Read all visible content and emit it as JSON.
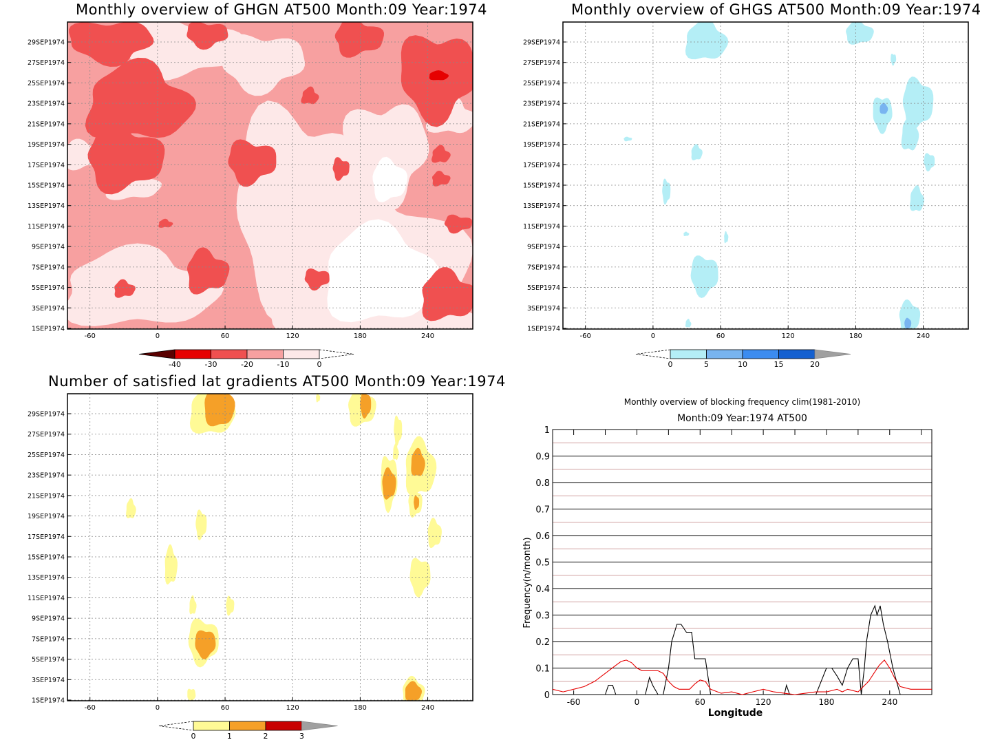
{
  "chart_data": [
    {
      "type": "heatmap",
      "title": "Monthly overview of GHGN AT500 Month:09 Year:1974",
      "x_ticks": [
        -60,
        0,
        60,
        120,
        180,
        240
      ],
      "y_ticks": [
        "1SEP1974",
        "3SEP1974",
        "5SEP1974",
        "7SEP1974",
        "9SEP1974",
        "11SEP1974",
        "13SEP1974",
        "15SEP1974",
        "17SEP1974",
        "19SEP1974",
        "21SEP1974",
        "23SEP1974",
        "25SEP1974",
        "27SEP1974",
        "29SEP1974"
      ],
      "xlim": [
        -80,
        280
      ],
      "colorbar": {
        "ticks": [
          "-40",
          "-30",
          "-20",
          "-10",
          "0"
        ],
        "colors": [
          "#5a0000",
          "#e60000",
          "#f05050",
          "#f7a0a0",
          "#fde8e8"
        ]
      },
      "grid": true
    },
    {
      "type": "heatmap",
      "title": "Monthly overview of GHGS AT500 Month:09 Year:1974",
      "x_ticks": [
        -60,
        0,
        60,
        120,
        180,
        240
      ],
      "y_ticks": [
        "1SEP1974",
        "3SEP1974",
        "5SEP1974",
        "7SEP1974",
        "9SEP1974",
        "11SEP1974",
        "13SEP1974",
        "15SEP1974",
        "17SEP1974",
        "19SEP1974",
        "21SEP1974",
        "23SEP1974",
        "25SEP1974",
        "27SEP1974",
        "29SEP1974"
      ],
      "xlim": [
        -80,
        280
      ],
      "colorbar": {
        "ticks": [
          "0",
          "5",
          "10",
          "15",
          "20"
        ],
        "colors": [
          "#b4eef6",
          "#78b4f0",
          "#3c8cf0",
          "#1460d0",
          "#a0a0a0"
        ]
      },
      "grid": true
    },
    {
      "type": "heatmap",
      "title": "Number of satisfied lat gradients AT500 Month:09 Year:1974",
      "x_ticks": [
        -60,
        0,
        60,
        120,
        180,
        240
      ],
      "y_ticks": [
        "1SEP1974",
        "3SEP1974",
        "5SEP1974",
        "7SEP1974",
        "9SEP1974",
        "11SEP1974",
        "13SEP1974",
        "15SEP1974",
        "17SEP1974",
        "19SEP1974",
        "21SEP1974",
        "23SEP1974",
        "25SEP1974",
        "27SEP1974",
        "29SEP1974"
      ],
      "xlim": [
        -80,
        280
      ],
      "colorbar": {
        "ticks": [
          "0",
          "1",
          "2",
          "3"
        ],
        "colors": [
          "#fffa96",
          "#f5a028",
          "#c80000",
          "#a0a0a0"
        ]
      },
      "grid": true
    },
    {
      "type": "line",
      "title": "Monthly overview of blocking frequency clim(1981-2010)",
      "subtitle": "Month:09 Year:1974  AT500",
      "xlabel": "Longitude",
      "ylabel": "Frequency(n/month)",
      "x_ticks": [
        -60,
        0,
        60,
        120,
        180,
        240
      ],
      "y_ticks": [
        "0",
        "0.1",
        "0.2",
        "0.3",
        "0.4",
        "0.5",
        "0.6",
        "0.7",
        "0.8",
        "0.9",
        "1"
      ],
      "xlim": [
        -80,
        280
      ],
      "ylim": [
        0,
        1
      ],
      "series": [
        {
          "color": "#000000",
          "x": [
            -80,
            -30,
            -27,
            -23,
            -20,
            0,
            8,
            12,
            15,
            20,
            25,
            30,
            33,
            38,
            42,
            47,
            52,
            55,
            65,
            70,
            80,
            120,
            140,
            142,
            145,
            170,
            180,
            185,
            190,
            195,
            200,
            205,
            210,
            213,
            216,
            218,
            222,
            226,
            228,
            231,
            234,
            238,
            243,
            250,
            280
          ],
          "values": [
            0,
            0,
            0.035,
            0.035,
            0,
            0,
            0,
            0.065,
            0.035,
            0,
            0,
            0.1,
            0.2,
            0.265,
            0.265,
            0.235,
            0.235,
            0.135,
            0.135,
            0,
            0,
            0,
            0,
            0.035,
            0,
            0,
            0.1,
            0.1,
            0.07,
            0.035,
            0.1,
            0.135,
            0.135,
            0,
            0.1,
            0.2,
            0.3,
            0.335,
            0.3,
            0.335,
            0.265,
            0.2,
            0.1,
            0,
            0
          ]
        },
        {
          "color": "#e60000",
          "x": [
            -80,
            -70,
            -60,
            -50,
            -40,
            -30,
            -20,
            -15,
            -10,
            -5,
            0,
            5,
            10,
            15,
            20,
            25,
            30,
            35,
            40,
            50,
            55,
            60,
            65,
            70,
            80,
            90,
            100,
            110,
            120,
            130,
            140,
            150,
            160,
            170,
            180,
            190,
            195,
            200,
            205,
            210,
            215,
            220,
            225,
            230,
            235,
            240,
            245,
            250,
            260,
            270,
            280
          ],
          "values": [
            0.02,
            0.01,
            0.02,
            0.03,
            0.05,
            0.08,
            0.11,
            0.125,
            0.13,
            0.12,
            0.1,
            0.09,
            0.09,
            0.09,
            0.09,
            0.08,
            0.05,
            0.03,
            0.02,
            0.02,
            0.04,
            0.055,
            0.05,
            0.02,
            0.005,
            0.01,
            0.0,
            0.01,
            0.02,
            0.01,
            0.005,
            0.0,
            0.005,
            0.01,
            0.01,
            0.02,
            0.01,
            0.02,
            0.015,
            0.01,
            0.03,
            0.05,
            0.08,
            0.11,
            0.13,
            0.1,
            0.06,
            0.03,
            0.02,
            0.02,
            0.02
          ]
        }
      ],
      "hlines_gray": [
        0.05,
        0.15,
        0.25,
        0.35,
        0.45,
        0.55,
        0.65,
        0.75,
        0.85,
        0.95
      ],
      "grid": true
    }
  ]
}
